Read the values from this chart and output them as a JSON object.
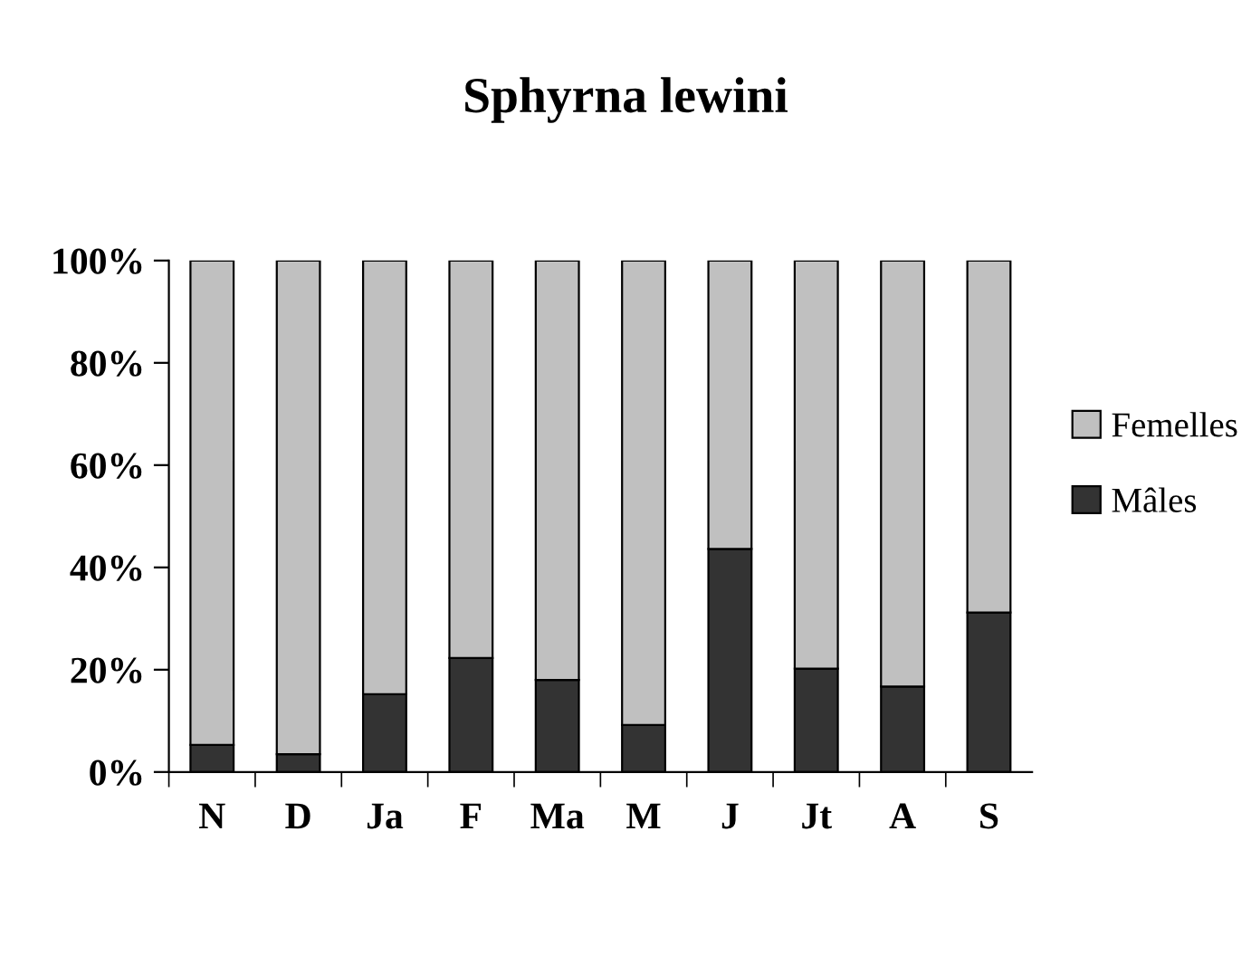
{
  "chart_data": {
    "type": "bar",
    "title": "Sphyrna lewini",
    "stacked": true,
    "categories": [
      "N",
      "D",
      "Ja",
      "F",
      "Ma",
      "M",
      "J",
      "Jt",
      "A",
      "S"
    ],
    "series": [
      {
        "name": "Mâles",
        "color": "#333333",
        "values": [
          5.3,
          3.5,
          15.2,
          22.3,
          18,
          9.2,
          43.6,
          20.2,
          16.7,
          31.2
        ]
      },
      {
        "name": "Femelles",
        "color": "#c0c0c0",
        "values": [
          94.7,
          96.5,
          84.8,
          77.7,
          82,
          90.8,
          56.4,
          79.8,
          83.3,
          68.8
        ]
      }
    ],
    "ylim": [
      0,
      100
    ],
    "yticks": [
      {
        "value": 0,
        "label": "0%"
      },
      {
        "value": 20,
        "label": "20%"
      },
      {
        "value": 40,
        "label": "40%"
      },
      {
        "value": 60,
        "label": "60%"
      },
      {
        "value": 80,
        "label": "80%"
      },
      {
        "value": 100,
        "label": "100%"
      }
    ],
    "grid": false,
    "legend": "right"
  }
}
